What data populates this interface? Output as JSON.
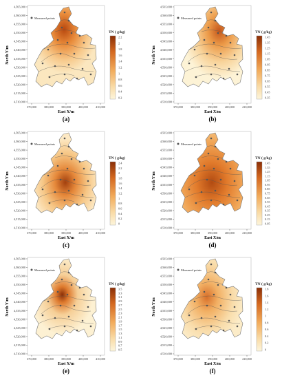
{
  "axis": {
    "ylabel": "North Y/m",
    "xlabel": "East X/m",
    "yticks": [
      "4,565,000",
      "4,560,000",
      "4,555,000",
      "4,550,000",
      "4,545,000",
      "4,540,000",
      "4,535,000",
      "4,530,000",
      "4,525,000",
      "4,520,000",
      "4,515,000",
      "4,510,000"
    ],
    "xticks": [
      "370,000",
      "380,000",
      "390,000",
      "400,000",
      "410,000"
    ]
  },
  "legend_text": "Measured points",
  "colors": {
    "light": "#fdf3d6",
    "mid": "#f4b465",
    "dark": "#c4561b",
    "darkest": "#8a2f07",
    "line": "#555555"
  },
  "panels": [
    {
      "id": "a",
      "label": "(a)",
      "title": "TN (  g/kg)",
      "scale": [
        "2.2",
        "2",
        "1.8",
        "1.6",
        "1.4",
        "1.2",
        "1",
        "0.8",
        "0.6",
        "0.4",
        "0.2"
      ],
      "hot": "north"
    },
    {
      "id": "b",
      "label": "(b)",
      "title": "TN (  g/kg)",
      "scale": [
        "1.45",
        "1.35",
        "1.25",
        "1.15",
        "1.05",
        "0.95",
        "0.85",
        "0.75",
        "0.65",
        "0.55",
        "0.45",
        "0.35"
      ],
      "hot": "northeast"
    },
    {
      "id": "c",
      "label": "(c)",
      "title": "TN (  g/kg)",
      "scale": [
        "2.4",
        "2.2",
        "2",
        "1.8",
        "1.6",
        "1.4",
        "1.2",
        "1",
        "0.8",
        "0.6",
        "0.4",
        "0.2",
        "0"
      ],
      "hot": "center"
    },
    {
      "id": "d",
      "label": "(d)",
      "title": "TN (  g/kg)",
      "scale": [
        "1.45",
        "1.35",
        "1.25",
        "1.15",
        "1.05",
        "0.95",
        "0.85",
        "0.75",
        "0.65",
        "0.55",
        "0.45",
        "0.35",
        "0.25",
        "0.15",
        "0.05"
      ],
      "hot": "center-wide"
    },
    {
      "id": "e",
      "label": "(e)",
      "title": "TN (  g/kg)",
      "scale": [
        "3.5",
        "3.3",
        "3.1",
        "2.9",
        "2.7",
        "2.5",
        "2.3",
        "2.1",
        "1.9",
        "1.7",
        "1.5",
        "1.3",
        "1.1",
        "0.9",
        "0.7",
        "0.5"
      ],
      "hot": "west"
    },
    {
      "id": "f",
      "label": "(f)",
      "title": "TN (  g/kg)",
      "scale": [
        "1.8",
        "1.6",
        "1.4",
        "1.2",
        "1",
        "0.8",
        "0.6",
        "0.4",
        "0.2",
        "0"
      ],
      "hot": "west-light"
    }
  ]
}
